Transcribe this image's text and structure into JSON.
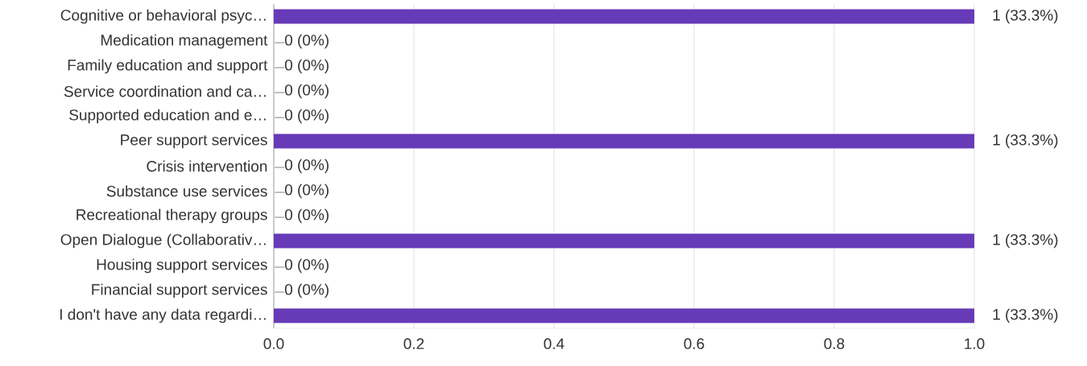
{
  "chart_data": {
    "type": "bar",
    "orientation": "horizontal",
    "categories": [
      "Cognitive or behavioral psyc…",
      "Medication management",
      "Family education and support",
      "Service coordination and ca…",
      "Supported education and e…",
      "Peer support services",
      "Crisis intervention",
      "Substance use services",
      "Recreational therapy groups",
      "Open Dialogue (Collaborativ…",
      "Housing support services",
      "Financial support services",
      "I don't have any data regardi…"
    ],
    "values": [
      1,
      0,
      0,
      0,
      0,
      1,
      0,
      0,
      0,
      1,
      0,
      0,
      1
    ],
    "value_labels": [
      "1 (33.3%)",
      "0 (0%)",
      "0 (0%)",
      "0 (0%)",
      "0 (0%)",
      "1 (33.3%)",
      "0 (0%)",
      "0 (0%)",
      "0 (0%)",
      "1 (33.3%)",
      "0 (0%)",
      "0 (0%)",
      "1 (33.3%)"
    ],
    "color": "#673ab7",
    "xlim": [
      0,
      1
    ],
    "xticks": [
      {
        "value": 0,
        "label": "0.0"
      },
      {
        "value": 0.2,
        "label": "0.2"
      },
      {
        "value": 0.4,
        "label": "0.4"
      },
      {
        "value": 0.6,
        "label": "0.6"
      },
      {
        "value": 0.8,
        "label": "0.8"
      },
      {
        "value": 1,
        "label": "1.0"
      }
    ],
    "grid": "x"
  }
}
